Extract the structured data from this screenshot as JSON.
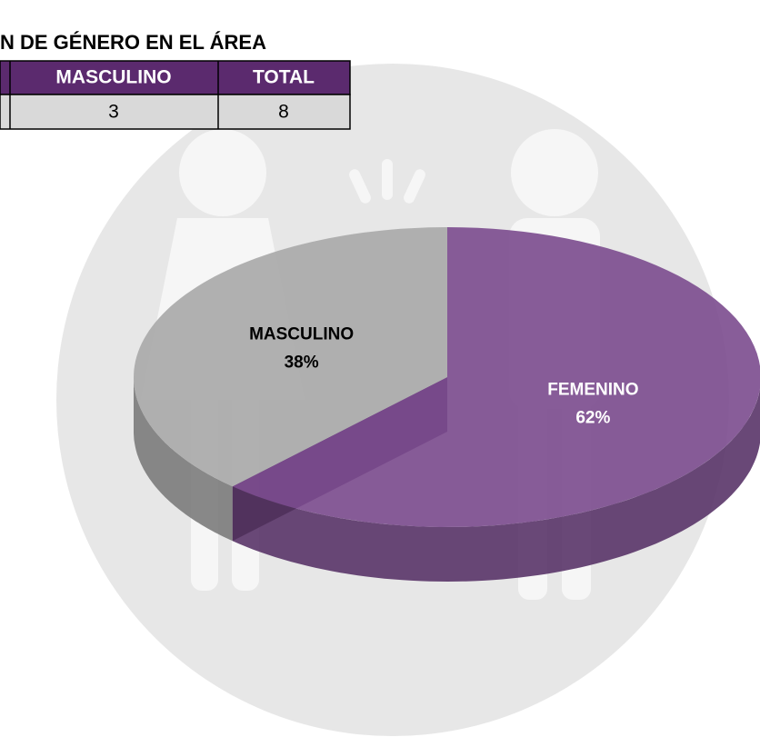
{
  "header": {
    "title": "N DE GÉNERO EN EL ÁREA"
  },
  "table": {
    "columns": [
      "MASCULINO",
      "TOTAL"
    ],
    "rows": [
      [
        "3",
        "8"
      ]
    ]
  },
  "chart_data": {
    "type": "pie",
    "categories": [
      "FEMENINO",
      "MASCULINO"
    ],
    "values": [
      62,
      38
    ],
    "value_labels": [
      "62%",
      "38%"
    ],
    "colors": [
      "#7b4b8e",
      "#a8a8a8"
    ]
  }
}
